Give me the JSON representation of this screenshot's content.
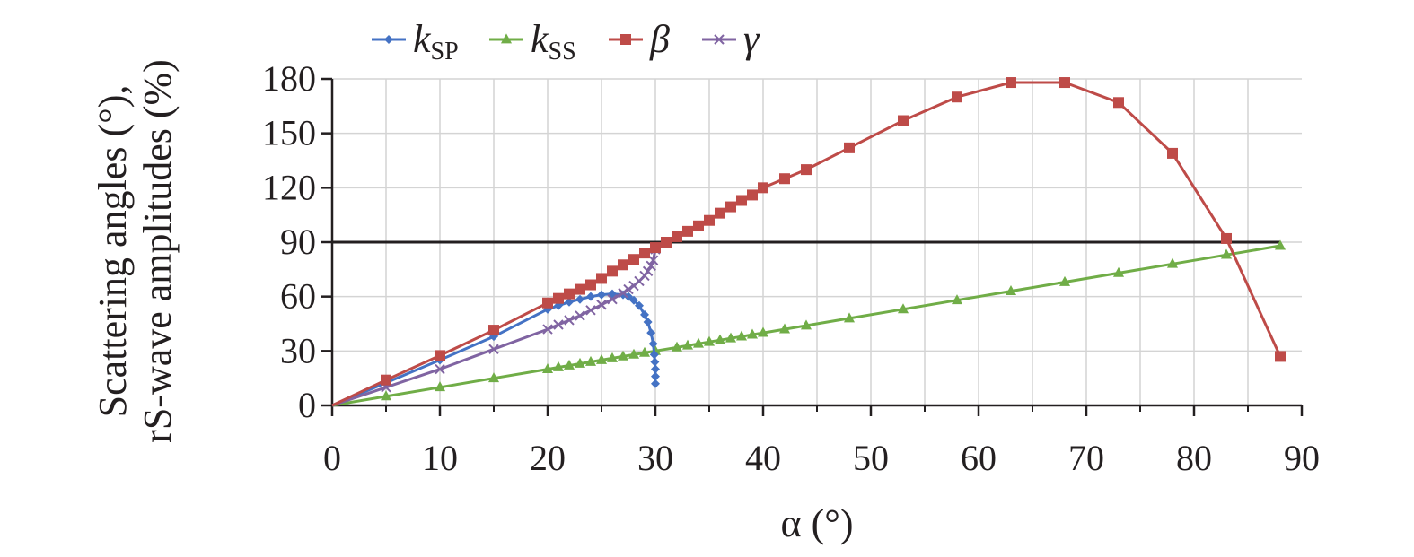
{
  "chart_data": {
    "type": "line",
    "xlabel": "α (°)",
    "ylabel": [
      "Scattering angles (°),",
      "rS-wave amplitudes (%)"
    ],
    "xlim": [
      0,
      90
    ],
    "ylim": [
      0,
      180
    ],
    "xticks": [
      0,
      10,
      20,
      30,
      40,
      50,
      60,
      70,
      80,
      90
    ],
    "yticks": [
      0,
      30,
      60,
      90,
      120,
      150,
      180
    ],
    "grid": true,
    "legend_position": "top",
    "reference_line": {
      "y": 90,
      "x_range": [
        0,
        88
      ]
    },
    "series": [
      {
        "name": "k",
        "subscript": "SP",
        "color": "#4472c4",
        "marker": "diamond",
        "x": [
          0,
          5,
          10,
          15,
          20,
          21,
          22,
          23,
          24,
          25,
          26,
          27,
          27.5,
          28,
          28.5,
          29,
          29.3,
          29.6,
          29.8,
          29.9,
          29.95,
          30,
          30,
          30
        ],
        "y": [
          0,
          12.5,
          25,
          38,
          53,
          55,
          57,
          58.5,
          60,
          61,
          61.5,
          61,
          60,
          58,
          55,
          50,
          46,
          40,
          34,
          28,
          24,
          20,
          16,
          12
        ]
      },
      {
        "name": "k",
        "subscript": "SS",
        "color": "#70ad47",
        "marker": "triangle",
        "x": [
          0,
          5,
          10,
          15,
          20,
          21,
          22,
          23,
          24,
          25,
          26,
          27,
          28,
          29,
          30,
          32,
          33,
          34,
          35,
          36,
          37,
          38,
          39,
          40,
          42,
          44,
          48,
          53,
          58,
          63,
          68,
          73,
          78,
          83,
          88
        ],
        "y": [
          0,
          5,
          10,
          15,
          20,
          21,
          22,
          23,
          24,
          25,
          26,
          27,
          28,
          29,
          30,
          32,
          33,
          34,
          35,
          36,
          37,
          38,
          39,
          40,
          42,
          44,
          48,
          53,
          58,
          63,
          68,
          73,
          78,
          83,
          88
        ]
      },
      {
        "name": "β",
        "subscript": "",
        "color": "#be4b48",
        "marker": "square",
        "x": [
          0,
          5,
          10,
          15,
          20,
          21,
          22,
          23,
          24,
          25,
          26,
          27,
          28,
          29,
          30,
          31,
          32,
          33,
          34,
          35,
          36,
          37,
          38,
          39,
          40,
          42,
          44,
          48,
          53,
          58,
          63,
          68,
          73,
          78,
          83,
          88
        ],
        "y": [
          0,
          14,
          27.5,
          41.5,
          56.5,
          59,
          61.5,
          64,
          66.5,
          70,
          74,
          77.5,
          80.5,
          84,
          87,
          90,
          93,
          96,
          99,
          102,
          106,
          109.5,
          113,
          116,
          120,
          125,
          130,
          142,
          157,
          170,
          178,
          178,
          167,
          139,
          92,
          27
        ]
      },
      {
        "name": "γ",
        "subscript": "",
        "color": "#8064a2",
        "marker": "cross",
        "x": [
          0,
          5,
          10,
          15,
          20,
          21,
          22,
          23,
          24,
          25,
          26,
          27,
          27.5,
          28,
          28.5,
          29,
          29.3,
          29.6,
          29.8,
          30
        ],
        "y": [
          0,
          10,
          20,
          31,
          42,
          44.5,
          47,
          49.5,
          52.5,
          55.5,
          58.5,
          62,
          64,
          66,
          68.5,
          71.5,
          74,
          77,
          80,
          86
        ]
      }
    ]
  }
}
